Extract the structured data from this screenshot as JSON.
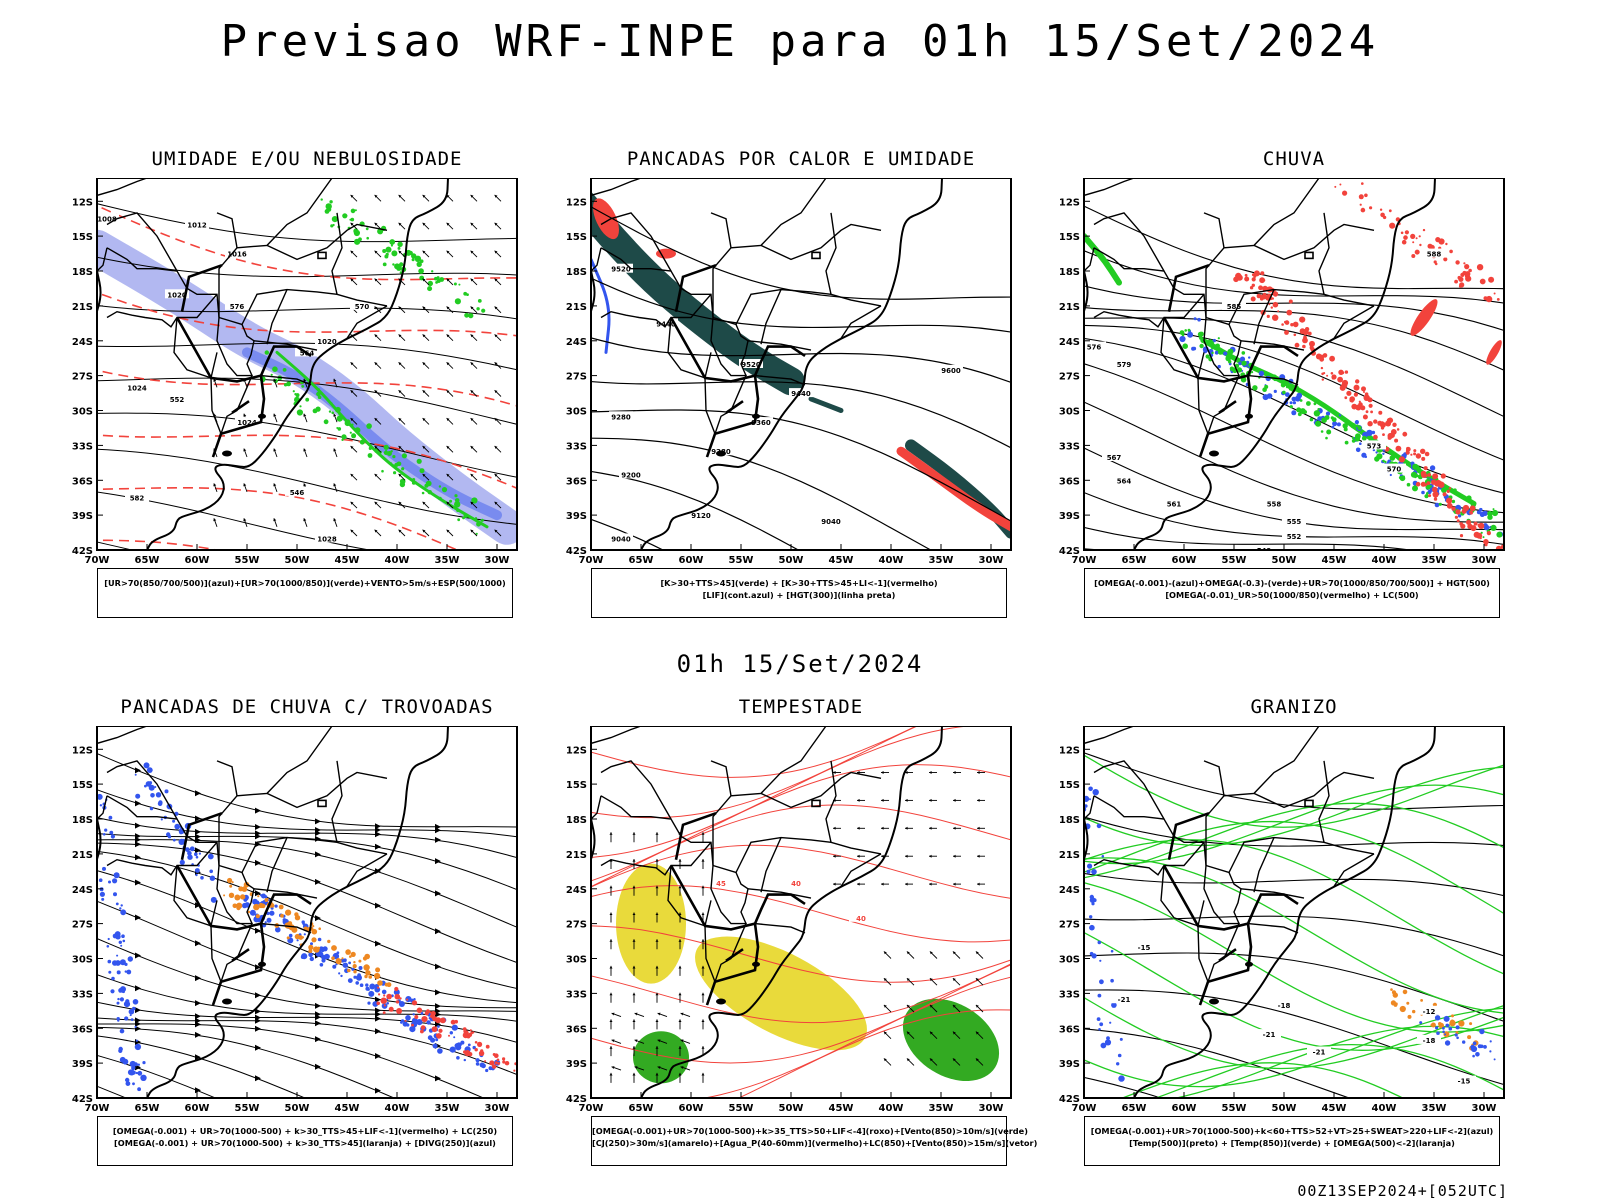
{
  "header": {
    "title": "Previsao WRF-INPE  para 01h 15/Set/2024",
    "subtitle": "01h 15/Set/2024",
    "footer": "00Z13SEP2024+[052UTC]"
  },
  "chart_data": [
    {
      "type": "heatmap",
      "title": "UMIDADE E/OU NEBULOSIDADE",
      "legend": [
        "[UR>70(850/700/500)](azul)+[UR>70(1000/850)](verde)+VENTO>5m/s+ESP(500/1000)"
      ],
      "lat_ticks": [
        "12S",
        "15S",
        "18S",
        "21S",
        "24S",
        "27S",
        "30S",
        "33S",
        "36S",
        "39S",
        "42S"
      ],
      "lon_ticks": [
        "70W",
        "65W",
        "60W",
        "55W",
        "50W",
        "45W",
        "40W",
        "35W",
        "30W"
      ],
      "contour_labels": [
        "1012",
        "1016",
        "1020",
        "1024",
        "1028",
        "1008",
        "1018",
        "564",
        "570",
        "576",
        "582",
        "552",
        "546"
      ]
    },
    {
      "type": "heatmap",
      "title": "PANCADAS POR CALOR E UMIDADE",
      "legend": [
        "[K>30+TTS>45](verde) + [K>30+TTS>45+LI<-1](vermelho)",
        "[LIF](cont.azul) + [HGT(300)](linha preta)"
      ],
      "lat_ticks": [
        "12S",
        "15S",
        "18S",
        "21S",
        "24S",
        "27S",
        "30S",
        "33S",
        "36S",
        "39S",
        "42S"
      ],
      "lon_ticks": [
        "70W",
        "65W",
        "60W",
        "55W",
        "50W",
        "45W",
        "40W",
        "35W",
        "30W"
      ],
      "contour_labels": [
        "9600",
        "9520",
        "9440",
        "9360",
        "9280",
        "9200",
        "9120",
        "9040"
      ]
    },
    {
      "type": "heatmap",
      "title": "CHUVA",
      "legend": [
        "[OMEGA(-0.001)-(azul)+OMEGA(-0.3)-(verde)+UR>70(1000/850/700/500)] + HGT(500)",
        "[OMEGA(-0.01)_UR>50(1000/850)(vermelho) + LC(500)"
      ],
      "lat_ticks": [
        "12S",
        "15S",
        "18S",
        "21S",
        "24S",
        "27S",
        "30S",
        "33S",
        "36S",
        "39S",
        "42S"
      ],
      "lon_ticks": [
        "70W",
        "65W",
        "60W",
        "55W",
        "50W",
        "45W",
        "40W",
        "35W",
        "30W"
      ],
      "contour_labels": [
        "588",
        "585",
        "579",
        "576",
        "573",
        "570",
        "567",
        "564",
        "561",
        "558",
        "555",
        "552",
        "549"
      ]
    },
    {
      "type": "heatmap",
      "title": "PANCADAS DE CHUVA C/ TROVOADAS",
      "legend": [
        "[OMEGA(-0.001) + UR>70(1000-500) + k>30_TTS>45+LIF<-1](vermelho) + LC(250)",
        "[OMEGA(-0.001) + UR>70(1000-500) + k>30_TTS>45](laranja) + [DIVG(250)](azul)"
      ],
      "lat_ticks": [
        "12S",
        "15S",
        "18S",
        "21S",
        "24S",
        "27S",
        "30S",
        "33S",
        "36S",
        "39S",
        "42S"
      ],
      "lon_ticks": [
        "70W",
        "65W",
        "60W",
        "55W",
        "50W",
        "45W",
        "40W",
        "35W",
        "30W"
      ],
      "contour_labels": []
    },
    {
      "type": "heatmap",
      "title": "TEMPESTADE",
      "legend": [
        "[OMEGA(-0.001)+UR>70(1000-500)+k>35_TTS>50+LIF<-4](roxo)+[Vento(850)>10m/s](verde)",
        "[CJ(250)>30m/s](amarelo)+[Agua_P(40-60mm)](vermelho)+LC(850)+[Vento(850)>15m/s](vetor)"
      ],
      "lat_ticks": [
        "12S",
        "15S",
        "18S",
        "21S",
        "24S",
        "27S",
        "30S",
        "33S",
        "36S",
        "39S",
        "42S"
      ],
      "lon_ticks": [
        "70W",
        "65W",
        "60W",
        "55W",
        "50W",
        "45W",
        "40W",
        "35W",
        "30W"
      ],
      "contour_labels": [
        "45",
        "40",
        "40"
      ]
    },
    {
      "type": "heatmap",
      "title": "GRANIZO",
      "legend": [
        "[OMEGA(-0.001)+UR>70(1000-500)+k<60+TTS>52+VT>25+SWEAT>220+LIF<-2](azul)",
        "[Temp(500)](preto) + [Temp(850)](verde) + [OMEGA(500)<-2](laranja)"
      ],
      "lat_ticks": [
        "12S",
        "15S",
        "18S",
        "21S",
        "24S",
        "27S",
        "30S",
        "33S",
        "36S",
        "39S",
        "42S"
      ],
      "lon_ticks": [
        "70W",
        "65W",
        "60W",
        "55W",
        "50W",
        "45W",
        "40W",
        "35W",
        "30W"
      ],
      "contour_labels": [
        "-15",
        "-18",
        "-21",
        "-21",
        "-18",
        "-12",
        "-15",
        "-18"
      ]
    }
  ],
  "colors": {
    "red": "#f2433c",
    "green": "#22cc22",
    "blue": "#3355ee",
    "lavender": "#aab0f0",
    "darkteal": "#1e4a48",
    "yellow": "#e8d830",
    "orange": "#ee8822",
    "darkgreen": "#33aa22"
  }
}
